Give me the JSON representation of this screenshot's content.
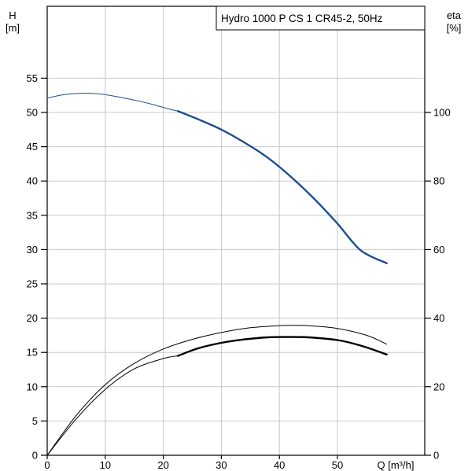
{
  "chart_data": {
    "type": "line",
    "title": "Hydro 1000 P CS 1 CR45-2, 50Hz",
    "x_axis": {
      "label": "Q [m³/h]",
      "range": [
        0,
        65
      ],
      "ticks": [
        0,
        10,
        20,
        30,
        40,
        50
      ],
      "grid": true
    },
    "y_axis_left": {
      "label_lines": [
        "H",
        "[m]"
      ],
      "range": [
        0,
        60
      ],
      "ticks": [
        0,
        5,
        10,
        15,
        20,
        25,
        30,
        35,
        40,
        45,
        50,
        55
      ],
      "grid": true
    },
    "y_axis_right": {
      "label_lines": [
        "eta",
        "[%]"
      ],
      "range": [
        0,
        136.4
      ],
      "ticks": [
        0,
        20,
        40,
        60,
        80,
        100
      ]
    },
    "series": [
      {
        "id": "head-extended",
        "axis": "left",
        "color": "#1f4e8c",
        "style": "thin",
        "x": [
          0,
          3,
          6,
          9,
          12,
          15,
          18,
          21,
          22.5
        ],
        "y": [
          52.1,
          52.6,
          52.8,
          52.7,
          52.3,
          51.8,
          51.2,
          50.5,
          50.2
        ]
      },
      {
        "id": "head-operating",
        "axis": "left",
        "color": "#1f4e8c",
        "style": "thick",
        "x": [
          22.5,
          26,
          30,
          34,
          38,
          42,
          46,
          50,
          54,
          58.5
        ],
        "y": [
          50.2,
          49.0,
          47.5,
          45.6,
          43.4,
          40.6,
          37.4,
          33.8,
          29.9,
          28.0
        ]
      },
      {
        "id": "efficiency-thin",
        "axis": "left",
        "color": "#000000",
        "style": "thin",
        "x": [
          0,
          5,
          10,
          15,
          20,
          25,
          30,
          35,
          40,
          42,
          45,
          50,
          55,
          58.5
        ],
        "y": [
          0,
          5.8,
          10.3,
          13.4,
          15.5,
          16.9,
          17.9,
          18.6,
          18.9,
          18.95,
          18.9,
          18.5,
          17.5,
          16.2
        ]
      },
      {
        "id": "efficiency-lower",
        "axis": "left",
        "color": "#000000",
        "style": "thin",
        "x": [
          0,
          5,
          10,
          15,
          20,
          22.5
        ],
        "y": [
          0,
          5.3,
          9.6,
          12.6,
          14.1,
          14.5
        ]
      },
      {
        "id": "efficiency-operating",
        "axis": "left",
        "color": "#000000",
        "style": "thick",
        "x": [
          22.5,
          26,
          30,
          34,
          38,
          41.5,
          45,
          50,
          54,
          58.5
        ],
        "y": [
          14.5,
          15.6,
          16.4,
          16.9,
          17.2,
          17.25,
          17.2,
          16.8,
          16.0,
          14.7
        ]
      }
    ]
  }
}
